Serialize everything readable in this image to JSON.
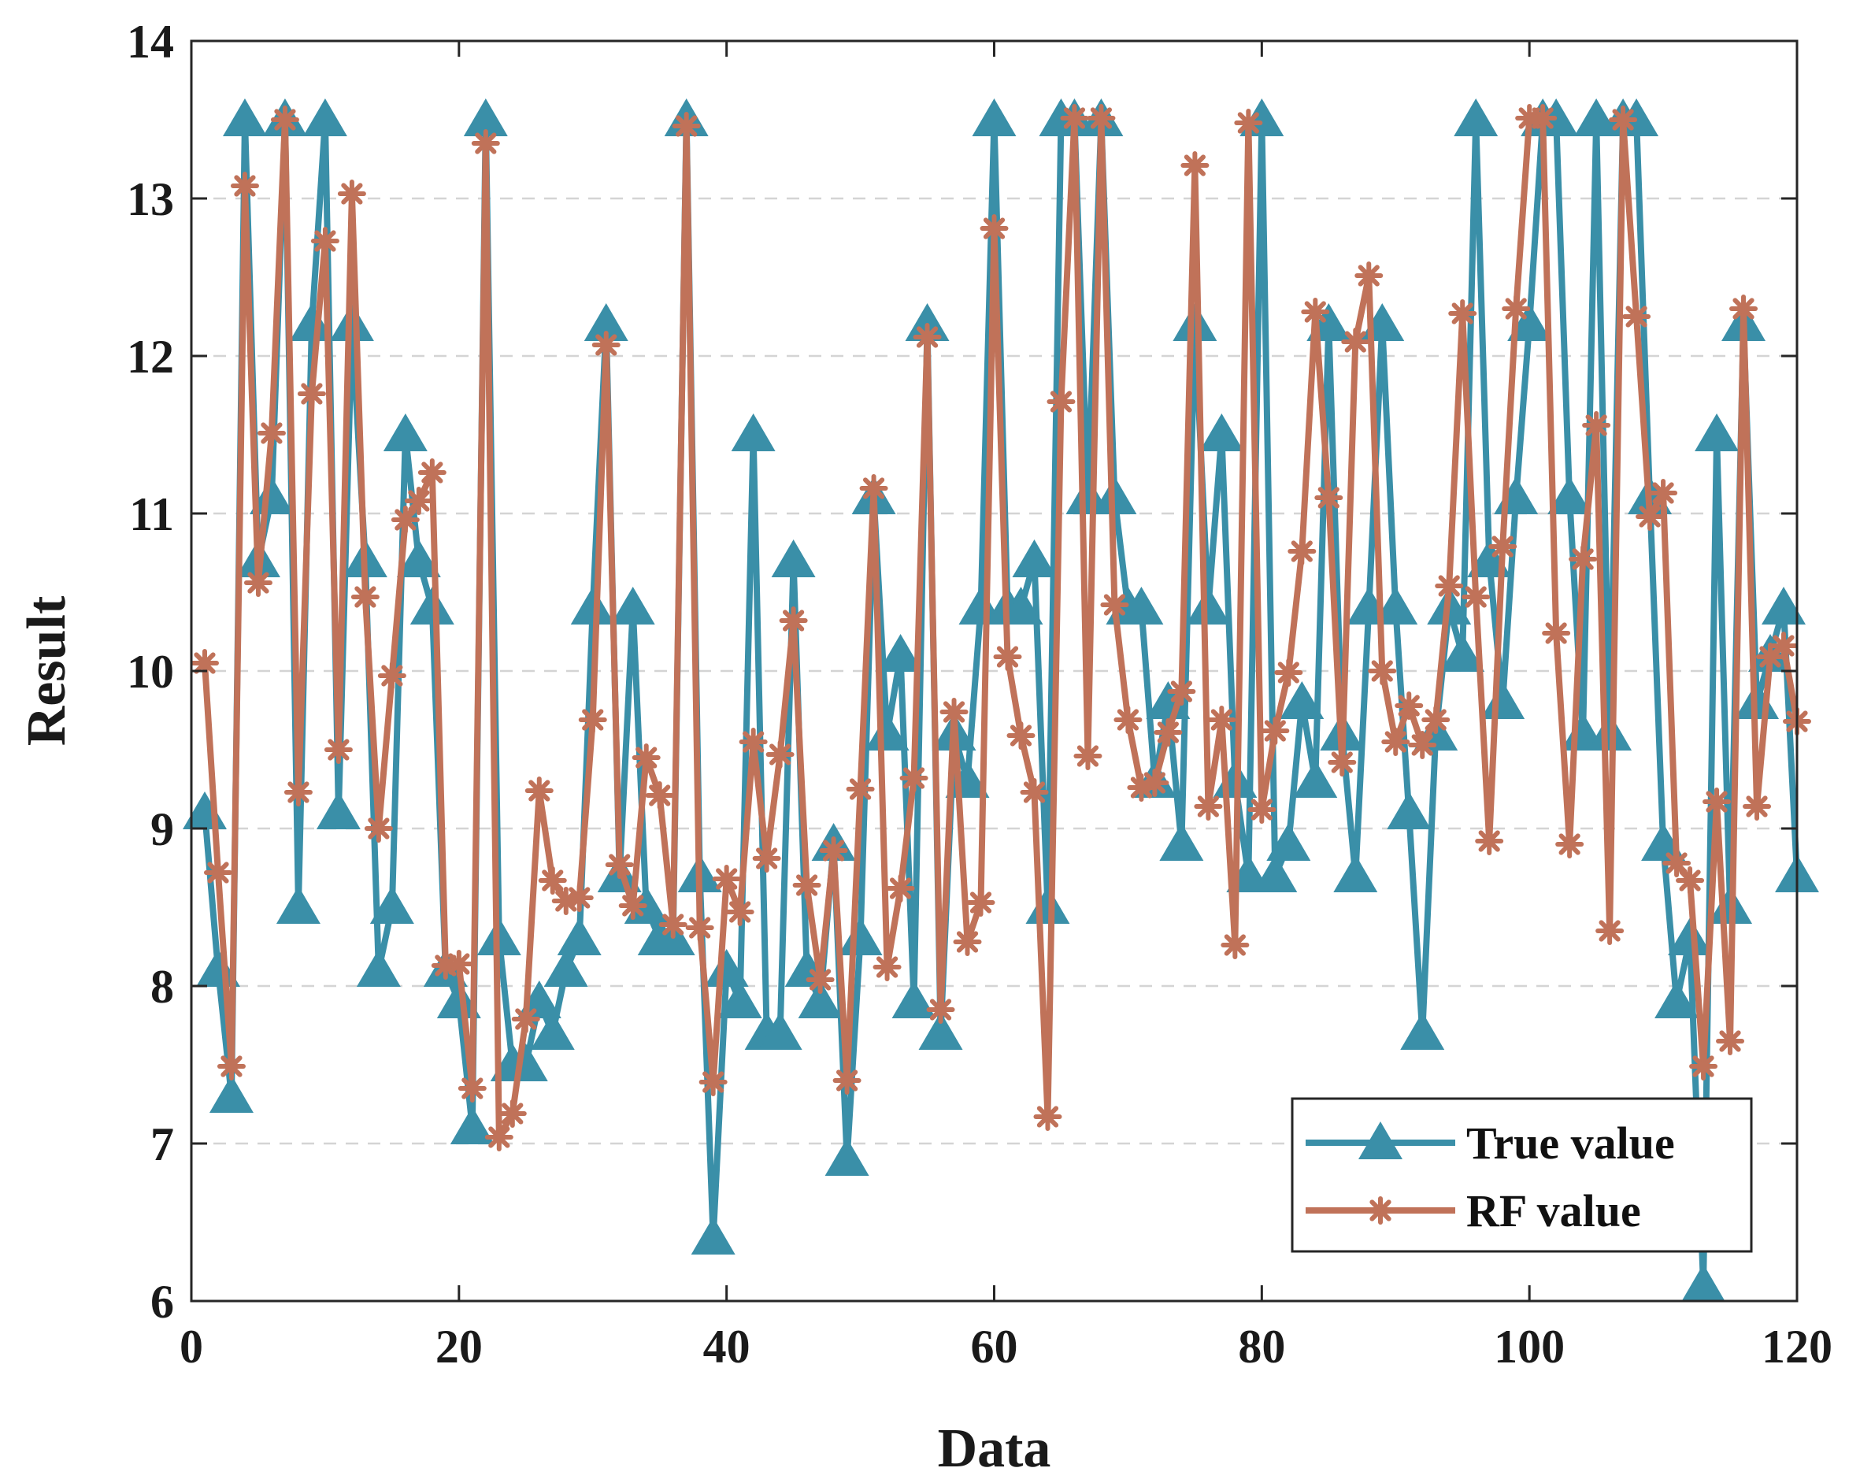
{
  "chart_data": {
    "type": "line",
    "title": "",
    "xlabel": "Data",
    "ylabel": "Result",
    "xlim": [
      0,
      120
    ],
    "ylim": [
      6,
      14
    ],
    "xticks": [
      0,
      20,
      40,
      60,
      80,
      100,
      120
    ],
    "yticks": [
      6,
      7,
      8,
      9,
      10,
      11,
      12,
      13,
      14
    ],
    "grid": "horizontal dashed",
    "legend_position": "bottom-right",
    "series": [
      {
        "name": "True value",
        "color": "#3a8fa8",
        "marker": "triangle",
        "values": [
          9.1,
          8.1,
          7.3,
          13.5,
          10.7,
          11.1,
          13.5,
          8.5,
          12.2,
          13.5,
          9.1,
          12.2,
          10.7,
          8.1,
          8.5,
          11.5,
          10.7,
          10.4,
          8.1,
          7.9,
          7.1,
          13.5,
          8.3,
          7.5,
          7.5,
          7.9,
          7.7,
          8.1,
          8.3,
          10.4,
          12.2,
          8.7,
          10.4,
          8.5,
          8.3,
          8.3,
          13.5,
          8.7,
          6.4,
          8.1,
          7.9,
          11.5,
          7.7,
          7.7,
          10.7,
          8.1,
          7.9,
          8.9,
          6.9,
          8.3,
          11.1,
          9.6,
          10.1,
          7.9,
          12.2,
          7.7,
          9.6,
          9.3,
          10.4,
          13.5,
          10.4,
          10.4,
          10.7,
          8.5,
          13.5,
          13.5,
          11.1,
          13.5,
          11.1,
          10.4,
          10.4,
          9.3,
          9.8,
          8.9,
          12.2,
          10.4,
          11.5,
          9.3,
          8.7,
          13.5,
          8.7,
          8.9,
          9.8,
          9.3,
          12.2,
          9.6,
          8.7,
          10.4,
          12.2,
          10.4,
          9.1,
          7.7,
          9.6,
          10.4,
          10.1,
          13.5,
          10.7,
          9.8,
          11.1,
          12.2,
          13.5,
          13.5,
          11.1,
          9.6,
          13.5,
          9.6,
          13.5,
          13.5,
          11.1,
          8.9,
          7.9,
          8.3,
          6.1,
          11.5,
          8.5,
          12.2,
          9.8,
          10.1,
          10.4,
          8.7
        ]
      },
      {
        "name": "RF value",
        "color": "#c07259",
        "marker": "star",
        "values": [
          10.05,
          8.72,
          7.49,
          13.08,
          10.56,
          11.51,
          13.5,
          9.23,
          11.76,
          12.73,
          9.5,
          13.03,
          10.47,
          9.0,
          9.97,
          10.96,
          11.08,
          11.26,
          8.13,
          8.14,
          7.35,
          13.35,
          7.04,
          7.19,
          7.79,
          9.24,
          8.67,
          8.54,
          8.56,
          9.69,
          12.07,
          8.77,
          8.51,
          9.45,
          9.21,
          8.39,
          13.46,
          8.37,
          7.39,
          8.68,
          8.47,
          9.55,
          8.81,
          9.47,
          10.32,
          8.64,
          8.04,
          8.86,
          7.4,
          9.25,
          11.16,
          8.12,
          8.62,
          9.32,
          12.12,
          7.85,
          9.74,
          8.28,
          8.53,
          12.81,
          10.09,
          9.59,
          9.23,
          7.17,
          11.71,
          13.51,
          9.46,
          13.51,
          10.42,
          9.69,
          9.26,
          9.29,
          9.61,
          9.87,
          13.21,
          9.14,
          9.69,
          8.26,
          13.48,
          9.12,
          9.62,
          9.99,
          10.76,
          12.28,
          11.1,
          9.42,
          12.09,
          12.51,
          10.0,
          9.55,
          9.78,
          9.53,
          9.69,
          10.54,
          12.27,
          10.47,
          8.92,
          10.79,
          12.3,
          13.51,
          13.51,
          10.24,
          8.9,
          10.71,
          11.56,
          8.35,
          13.5,
          12.25,
          10.98,
          11.13,
          8.78,
          8.67,
          7.49,
          9.17,
          7.65,
          12.3,
          9.14,
          10.09,
          10.16,
          9.68
        ]
      }
    ]
  }
}
